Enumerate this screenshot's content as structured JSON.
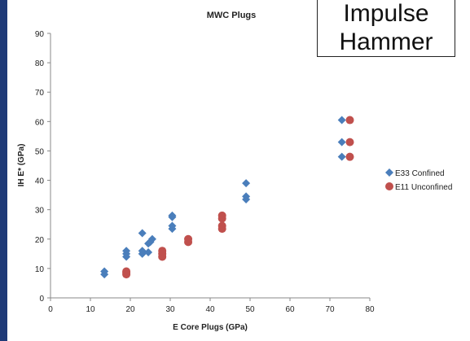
{
  "callout": {
    "line1": "Impulse",
    "line2": "Hammer"
  },
  "chart_data": {
    "type": "scatter",
    "title": "MWC Plugs",
    "xlabel": "E Core Plugs (GPa)",
    "ylabel": "IH E* (GPa)",
    "xlim": [
      0,
      80
    ],
    "ylim": [
      0,
      90
    ],
    "xticks": [
      0,
      10,
      20,
      30,
      40,
      50,
      60,
      70,
      80
    ],
    "yticks": [
      0,
      10,
      20,
      30,
      40,
      50,
      60,
      70,
      80,
      90
    ],
    "grid": false,
    "legend_position": "right",
    "series": [
      {
        "name": "E33 Confined",
        "color": "#4a7ebb",
        "marker": "diamond",
        "points": [
          [
            13.5,
            8
          ],
          [
            13.5,
            9
          ],
          [
            19,
            14
          ],
          [
            19,
            15
          ],
          [
            19,
            16
          ],
          [
            23,
            15
          ],
          [
            23,
            16
          ],
          [
            23,
            22
          ],
          [
            24.5,
            15.5
          ],
          [
            24.5,
            18.5
          ],
          [
            25,
            19
          ],
          [
            25.5,
            20
          ],
          [
            30.5,
            23.5
          ],
          [
            30.5,
            24.5
          ],
          [
            30.5,
            27.5
          ],
          [
            30.5,
            28
          ],
          [
            49,
            33.5
          ],
          [
            49,
            34.5
          ],
          [
            49,
            39
          ],
          [
            73,
            48
          ],
          [
            73,
            53
          ],
          [
            73,
            60.5
          ]
        ]
      },
      {
        "name": "E11 Unconfined",
        "color": "#c0504d",
        "marker": "circle",
        "points": [
          [
            19,
            8
          ],
          [
            19,
            8.5
          ],
          [
            19,
            9
          ],
          [
            28,
            14
          ],
          [
            28,
            15
          ],
          [
            28,
            16
          ],
          [
            34.5,
            19
          ],
          [
            34.5,
            20
          ],
          [
            43,
            23.5
          ],
          [
            43,
            24.5
          ],
          [
            43,
            27
          ],
          [
            43,
            28
          ],
          [
            75,
            48
          ],
          [
            75,
            53
          ],
          [
            75,
            60.5
          ]
        ]
      }
    ]
  }
}
